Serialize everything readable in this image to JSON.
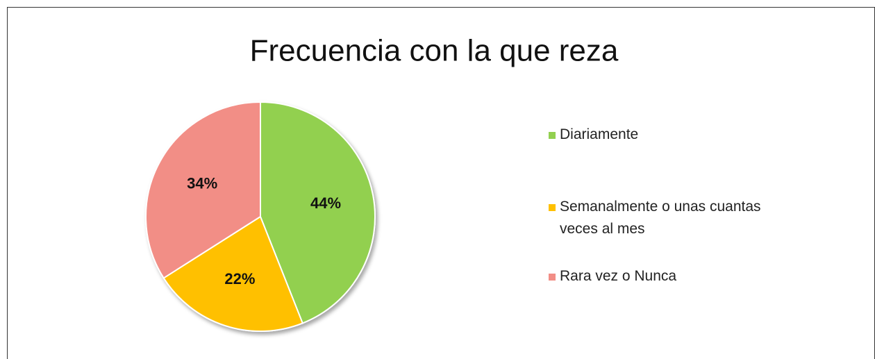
{
  "chart_data": {
    "type": "pie",
    "title": "Frecuencia con la que reza",
    "categories": [
      "Diariamente",
      "Semanalmente o unas cuantas veces al mes",
      "Rara vez o Nunca"
    ],
    "values": [
      44,
      22,
      34
    ],
    "value_labels": [
      "44%",
      "22%",
      "34%"
    ],
    "colors": [
      "#92d050",
      "#ffc000",
      "#f28e86"
    ],
    "legend": "right"
  }
}
